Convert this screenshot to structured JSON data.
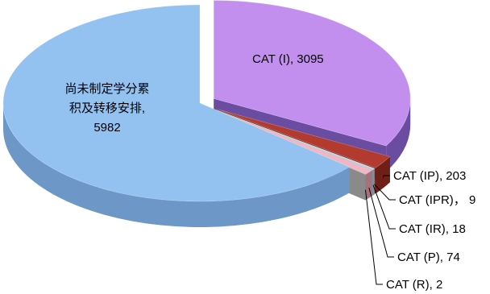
{
  "chart_data": {
    "type": "pie",
    "title": "",
    "style": "3d-exploded",
    "legend": "none",
    "slices": [
      {
        "label": "CAT (I)",
        "value": 3095,
        "display": "CAT (I), 3095",
        "color": "#c38fef",
        "side": "#6a4da0"
      },
      {
        "label": "CAT (IP)",
        "value": 203,
        "display": "CAT (IP), 203",
        "color": "#b33a2e",
        "side": "#6e1f18"
      },
      {
        "label": "CAT (IPR)",
        "value": 9,
        "display": "CAT (IPR)， 9",
        "color": "#d9c8c0",
        "side": "#8e7f78"
      },
      {
        "label": "CAT (IR)",
        "value": 18,
        "display": "CAT (IR), 18",
        "color": "#b9cde6",
        "side": "#7d8ea5"
      },
      {
        "label": "CAT (P)",
        "value": 74,
        "display": "CAT (P), 74",
        "color": "#f2b6c2",
        "side": "#a3727c"
      },
      {
        "label": "CAT (R)",
        "value": 2,
        "display": "CAT (R), 2",
        "color": "#d8d8d8",
        "side": "#8a8a8a"
      },
      {
        "label": "尚未制定学分累积及转移安排",
        "value": 5982,
        "display_lines": [
          "尚未制定学分累",
          "积及转移安排,",
          "5982"
        ],
        "color": "#93c2f0",
        "side": "#6d97c7"
      }
    ]
  }
}
